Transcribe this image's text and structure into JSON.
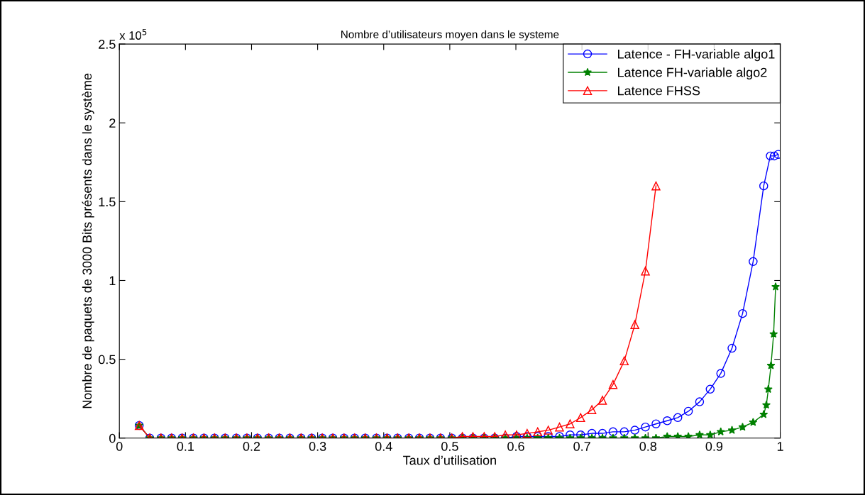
{
  "chart_data": {
    "type": "line",
    "title": "Nombre d’utilisateurs moyen dans le systeme",
    "xlabel": "Taux d’utilisation",
    "ylabel": "Nombre de paquets de 3000 Bits présents dans le système",
    "annotations": [
      "x 10$^{5}$"
    ],
    "xlim": [
      0,
      1
    ],
    "xticks": [
      0,
      0.1,
      0.2,
      0.3,
      0.4,
      0.5,
      0.6,
      0.7,
      0.8,
      0.9,
      1
    ],
    "ylim": [
      0,
      2.5
    ],
    "yticks": [
      0,
      0.5,
      1,
      1.5,
      2,
      2.5
    ],
    "grid": false,
    "legend": "top right",
    "series": [
      {
        "name": "Latence - FH-variable algo1",
        "color": "#0000ff",
        "marker": "circle",
        "x": [
          0.03,
          0.046,
          0.063,
          0.079,
          0.095,
          0.112,
          0.128,
          0.144,
          0.16,
          0.177,
          0.193,
          0.209,
          0.226,
          0.242,
          0.258,
          0.275,
          0.291,
          0.307,
          0.323,
          0.34,
          0.356,
          0.372,
          0.389,
          0.405,
          0.421,
          0.438,
          0.454,
          0.47,
          0.486,
          0.503,
          0.519,
          0.535,
          0.552,
          0.568,
          0.584,
          0.601,
          0.617,
          0.633,
          0.649,
          0.666,
          0.682,
          0.698,
          0.715,
          0.731,
          0.747,
          0.764,
          0.78,
          0.796,
          0.812,
          0.829,
          0.845,
          0.861,
          0.878,
          0.894,
          0.91,
          0.927,
          0.943,
          0.959,
          0.975,
          0.985,
          0.991,
          0.997
        ],
        "values": [
          0.08,
          0,
          0,
          0,
          0,
          0,
          0,
          0,
          0,
          0,
          0,
          0,
          0,
          0,
          0,
          0,
          0,
          0,
          0,
          0,
          0,
          0,
          0,
          0,
          0,
          0,
          0,
          0,
          0,
          0,
          0,
          0,
          0,
          0,
          0,
          0.01,
          0.01,
          0.01,
          0.01,
          0.01,
          0.02,
          0.02,
          0.03,
          0.03,
          0.04,
          0.04,
          0.05,
          0.07,
          0.09,
          0.11,
          0.13,
          0.17,
          0.23,
          0.31,
          0.41,
          0.57,
          0.79,
          1.12,
          1.6,
          1.79,
          1.79,
          1.8
        ]
      },
      {
        "name": "Latence FH-variable algo2",
        "color": "#008000",
        "marker": "star",
        "x": [
          0.03,
          0.046,
          0.063,
          0.079,
          0.095,
          0.112,
          0.128,
          0.144,
          0.16,
          0.177,
          0.193,
          0.209,
          0.226,
          0.242,
          0.258,
          0.275,
          0.291,
          0.307,
          0.323,
          0.34,
          0.356,
          0.372,
          0.389,
          0.405,
          0.421,
          0.438,
          0.454,
          0.47,
          0.486,
          0.503,
          0.519,
          0.535,
          0.552,
          0.568,
          0.584,
          0.601,
          0.617,
          0.633,
          0.649,
          0.666,
          0.682,
          0.698,
          0.715,
          0.731,
          0.747,
          0.764,
          0.78,
          0.796,
          0.812,
          0.829,
          0.845,
          0.861,
          0.878,
          0.894,
          0.91,
          0.927,
          0.943,
          0.959,
          0.975,
          0.979,
          0.982,
          0.986,
          0.99,
          0.993
        ],
        "values": [
          0.08,
          0,
          0,
          0,
          0,
          0,
          0,
          0,
          0,
          0,
          0,
          0,
          0,
          0,
          0,
          0,
          0,
          0,
          0,
          0,
          0,
          0,
          0,
          0,
          0,
          0,
          0,
          0,
          0,
          0,
          0,
          0,
          0,
          0,
          0,
          0,
          0,
          0,
          0,
          0,
          0,
          0,
          0,
          0,
          0,
          0,
          0,
          0,
          0,
          0.01,
          0.01,
          0.01,
          0.02,
          0.02,
          0.04,
          0.05,
          0.07,
          0.1,
          0.15,
          0.21,
          0.31,
          0.46,
          0.66,
          0.96
        ]
      },
      {
        "name": "Latence FHSS",
        "color": "#ff0000",
        "marker": "triangle",
        "x": [
          0.03,
          0.046,
          0.063,
          0.079,
          0.095,
          0.112,
          0.128,
          0.144,
          0.16,
          0.177,
          0.193,
          0.209,
          0.226,
          0.242,
          0.258,
          0.275,
          0.291,
          0.307,
          0.323,
          0.34,
          0.356,
          0.372,
          0.389,
          0.405,
          0.421,
          0.438,
          0.454,
          0.47,
          0.486,
          0.503,
          0.519,
          0.535,
          0.552,
          0.568,
          0.584,
          0.601,
          0.617,
          0.633,
          0.649,
          0.666,
          0.682,
          0.698,
          0.715,
          0.731,
          0.747,
          0.764,
          0.78,
          0.796,
          0.812
        ],
        "values": [
          0.08,
          0,
          0,
          0,
          0,
          0,
          0,
          0,
          0,
          0,
          0,
          0,
          0,
          0,
          0,
          0,
          0,
          0,
          0,
          0,
          0,
          0,
          0,
          0,
          0,
          0,
          0,
          0,
          0,
          0,
          0.01,
          0.01,
          0.01,
          0.01,
          0.02,
          0.02,
          0.03,
          0.04,
          0.05,
          0.07,
          0.09,
          0.13,
          0.18,
          0.24,
          0.34,
          0.49,
          0.72,
          1.06,
          1.6
        ]
      }
    ]
  }
}
